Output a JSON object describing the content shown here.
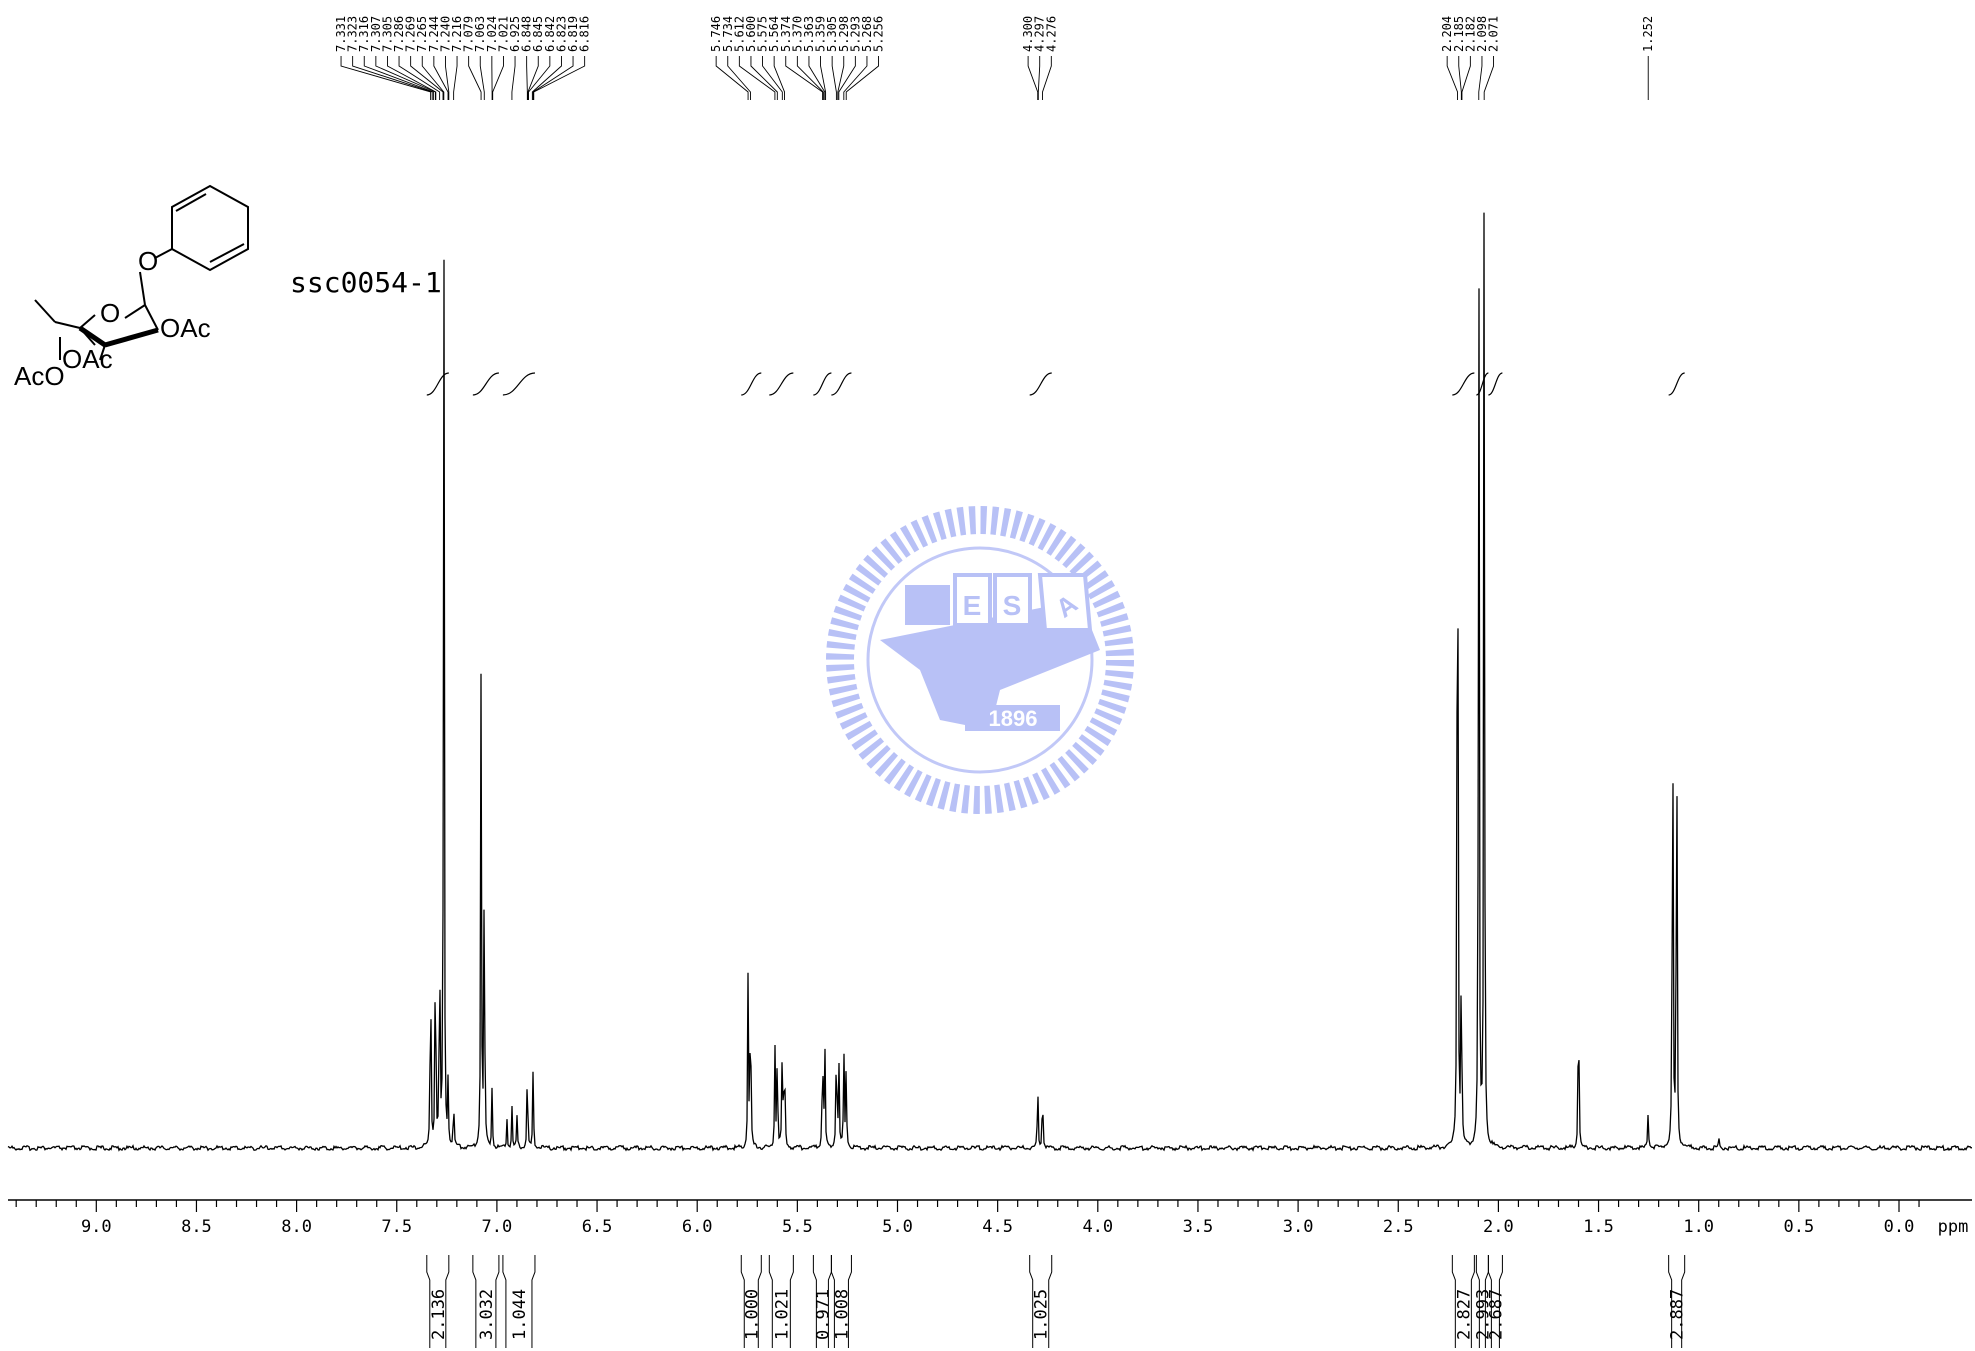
{
  "sample_label": "ssc0054-1",
  "chart_data": {
    "type": "line",
    "title": "",
    "xlabel": "ppm",
    "ylabel": "",
    "x_axis_reversed": true,
    "xlim": [
      9.7,
      -0.5
    ],
    "ticks": [
      "9.0",
      "8.5",
      "8.0",
      "7.5",
      "7.0",
      "6.5",
      "6.0",
      "5.5",
      "5.0",
      "4.5",
      "4.0",
      "3.5",
      "3.0",
      "2.5",
      "2.0",
      "1.5",
      "1.0",
      "0.5",
      "0.0"
    ],
    "tick_values": [
      9.0,
      8.5,
      8.0,
      7.5,
      7.0,
      6.5,
      6.0,
      5.5,
      5.0,
      4.5,
      4.0,
      3.5,
      3.0,
      2.5,
      2.0,
      1.5,
      1.0,
      0.5,
      0.0
    ],
    "grid": false,
    "peak_labels": [
      {
        "group": "aromatic",
        "anchor": 7.17,
        "values": [
          "7.331",
          "7.323",
          "7.316",
          "7.307",
          "7.305",
          "7.286",
          "7.269",
          "7.265",
          "7.244",
          "7.240",
          "7.216",
          "7.079",
          "7.063",
          "7.024",
          "7.021",
          "6.925",
          "6.848",
          "6.845",
          "6.842",
          "6.823",
          "6.819",
          "6.816"
        ]
      },
      {
        "group": "sugar",
        "anchor": 5.5,
        "values": [
          "5.746",
          "5.734",
          "5.612",
          "5.600",
          "5.575",
          "5.564",
          "5.374",
          "5.370",
          "5.363",
          "5.359",
          "5.305",
          "5.298",
          "5.293",
          "5.268",
          "5.256"
        ]
      },
      {
        "group": "h5",
        "anchor": 4.29,
        "values": [
          "4.300",
          "4.297",
          "4.276"
        ]
      },
      {
        "group": "acetyl",
        "anchor": 2.14,
        "values": [
          "2.204",
          "2.185",
          "2.182",
          "2.098",
          "2.071"
        ]
      },
      {
        "group": "methyl",
        "anchor": 1.252,
        "values": [
          "1.252"
        ]
      }
    ],
    "integrals": [
      {
        "from": 7.35,
        "to": 7.24,
        "value": "2.136"
      },
      {
        "from": 7.12,
        "to": 6.99,
        "value": "3.032"
      },
      {
        "from": 6.97,
        "to": 6.81,
        "value": "1.044"
      },
      {
        "from": 5.78,
        "to": 5.68,
        "value": "1.000"
      },
      {
        "from": 5.64,
        "to": 5.52,
        "value": "1.021"
      },
      {
        "from": 5.42,
        "to": 5.33,
        "value": "0.971"
      },
      {
        "from": 5.33,
        "to": 5.23,
        "value": "1.008"
      },
      {
        "from": 4.34,
        "to": 4.23,
        "value": "1.025"
      },
      {
        "from": 2.23,
        "to": 2.12,
        "value": "2.827"
      },
      {
        "from": 2.11,
        "to": 2.05,
        "value": "2.993"
      },
      {
        "from": 2.05,
        "to": 1.98,
        "value": "2.687"
      },
      {
        "from": 1.15,
        "to": 1.07,
        "value": "2.887"
      }
    ],
    "peaks": [
      {
        "ppm": 7.331,
        "height": 0.22
      },
      {
        "ppm": 7.307,
        "height": 0.25
      },
      {
        "ppm": 7.286,
        "height": 0.24
      },
      {
        "ppm": 7.265,
        "height": 1.0
      },
      {
        "ppm": 7.244,
        "height": 0.06
      },
      {
        "ppm": 7.216,
        "height": 0.05
      },
      {
        "ppm": 7.079,
        "height": 0.47
      },
      {
        "ppm": 7.063,
        "height": 0.31
      },
      {
        "ppm": 7.024,
        "height": 0.06
      },
      {
        "ppm": 6.95,
        "height": 0.03
      },
      {
        "ppm": 6.925,
        "height": 0.04
      },
      {
        "ppm": 6.9,
        "height": 0.03
      },
      {
        "ppm": 6.848,
        "height": 0.09
      },
      {
        "ppm": 6.819,
        "height": 0.08
      },
      {
        "ppm": 5.746,
        "height": 0.17
      },
      {
        "ppm": 5.734,
        "height": 0.18
      },
      {
        "ppm": 5.612,
        "height": 0.1
      },
      {
        "ppm": 5.6,
        "height": 0.11
      },
      {
        "ppm": 5.575,
        "height": 0.12
      },
      {
        "ppm": 5.564,
        "height": 0.11
      },
      {
        "ppm": 5.374,
        "height": 0.12
      },
      {
        "ppm": 5.363,
        "height": 0.11
      },
      {
        "ppm": 5.305,
        "height": 0.13
      },
      {
        "ppm": 5.293,
        "height": 0.09
      },
      {
        "ppm": 5.268,
        "height": 0.1
      },
      {
        "ppm": 5.256,
        "height": 0.09
      },
      {
        "ppm": 4.3,
        "height": 0.07
      },
      {
        "ppm": 4.276,
        "height": 0.07
      },
      {
        "ppm": 2.204,
        "height": 1.05
      },
      {
        "ppm": 2.185,
        "height": 0.21
      },
      {
        "ppm": 2.098,
        "height": 1.05
      },
      {
        "ppm": 2.071,
        "height": 1.05
      },
      {
        "ppm": 1.6,
        "height": 0.19
      },
      {
        "ppm": 1.252,
        "height": 0.04
      },
      {
        "ppm": 1.13,
        "height": 0.55
      },
      {
        "ppm": 1.11,
        "height": 0.53
      },
      {
        "ppm": 0.9,
        "height": 0.01
      }
    ]
  },
  "structure": {
    "labels": [
      "O",
      "O",
      "OAc",
      "OAc",
      "AcO"
    ]
  },
  "watermark": {
    "letters": [
      "E",
      "S",
      "A"
    ],
    "year": "1896"
  }
}
